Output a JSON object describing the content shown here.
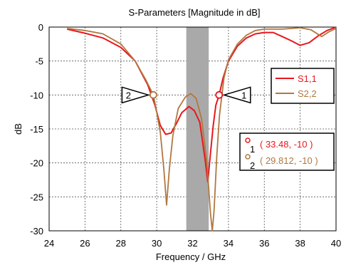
{
  "chart_data": {
    "type": "line",
    "title": "S-Parameters [Magnitude in dB]",
    "xlabel": "Frequency / GHz",
    "ylabel": "dB",
    "xlim": [
      24,
      40
    ],
    "ylim": [
      -30,
      0
    ],
    "xticks": [
      "24",
      "26",
      "28",
      "30",
      "32",
      "34",
      "36",
      "38",
      "40"
    ],
    "yticks": [
      "0",
      "-5",
      "-10",
      "-15",
      "-20",
      "-25",
      "-30"
    ],
    "grid": true,
    "legend_position": "right",
    "shaded_band": {
      "x_from": 31.65,
      "x_to": 32.9,
      "color": "#a9a9a9"
    },
    "series": [
      {
        "name": "S1,1",
        "color": "#e8171d",
        "points": [
          [
            25,
            -0.3
          ],
          [
            26,
            -0.9
          ],
          [
            27,
            -1.6
          ],
          [
            28,
            -3.0
          ],
          [
            28.8,
            -5.0
          ],
          [
            29.5,
            -8.5
          ],
          [
            29.9,
            -11.5
          ],
          [
            30.2,
            -14.5
          ],
          [
            30.5,
            -15.8
          ],
          [
            30.8,
            -15.6
          ],
          [
            31.1,
            -14.2
          ],
          [
            31.4,
            -12.6
          ],
          [
            31.8,
            -11.7
          ],
          [
            32.1,
            -12.3
          ],
          [
            32.4,
            -14.0
          ],
          [
            32.7,
            -19.5
          ],
          [
            32.85,
            -22.8
          ],
          [
            33.0,
            -18.5
          ],
          [
            33.15,
            -14.5
          ],
          [
            33.3,
            -11.5
          ],
          [
            33.48,
            -10.0
          ],
          [
            33.7,
            -7.5
          ],
          [
            34.0,
            -5.0
          ],
          [
            34.5,
            -2.8
          ],
          [
            35.0,
            -1.6
          ],
          [
            35.5,
            -1.0
          ],
          [
            36.0,
            -0.8
          ],
          [
            36.5,
            -0.8
          ],
          [
            37.0,
            -1.4
          ],
          [
            37.5,
            -2.0
          ],
          [
            38.0,
            -2.7
          ],
          [
            38.5,
            -2.3
          ],
          [
            39.0,
            -1.3
          ],
          [
            39.5,
            -0.5
          ],
          [
            40.0,
            0.0
          ]
        ]
      },
      {
        "name": "S2,2",
        "color": "#b07840",
        "points": [
          [
            25,
            -0.2
          ],
          [
            26,
            -0.5
          ],
          [
            27,
            -1.0
          ],
          [
            28,
            -2.5
          ],
          [
            28.8,
            -5.0
          ],
          [
            29.4,
            -7.8
          ],
          [
            29.812,
            -10.0
          ],
          [
            30.0,
            -12.5
          ],
          [
            30.2,
            -15.5
          ],
          [
            30.4,
            -21.0
          ],
          [
            30.55,
            -26.2
          ],
          [
            30.7,
            -21.0
          ],
          [
            30.9,
            -16.0
          ],
          [
            31.2,
            -12.0
          ],
          [
            31.6,
            -10.3
          ],
          [
            31.9,
            -9.8
          ],
          [
            32.2,
            -10.5
          ],
          [
            32.5,
            -13.5
          ],
          [
            32.8,
            -20.0
          ],
          [
            33.0,
            -27.5
          ],
          [
            33.1,
            -30.0
          ],
          [
            33.2,
            -27.0
          ],
          [
            33.35,
            -19.0
          ],
          [
            33.5,
            -13.0
          ],
          [
            33.75,
            -7.5
          ],
          [
            34.0,
            -4.8
          ],
          [
            34.5,
            -2.5
          ],
          [
            35.0,
            -1.2
          ],
          [
            35.5,
            -0.5
          ],
          [
            36.0,
            -0.3
          ],
          [
            37.0,
            -0.3
          ],
          [
            38.0,
            -0.1
          ],
          [
            38.6,
            -0.4
          ],
          [
            39.2,
            -1.4
          ],
          [
            39.6,
            -0.7
          ],
          [
            40.0,
            -0.2
          ]
        ]
      }
    ],
    "markers": [
      {
        "id": "1",
        "x": 33.48,
        "y": -10,
        "label": "( 33.48, -10 )",
        "color": "#e8171d"
      },
      {
        "id": "2",
        "x": 29.812,
        "y": -10,
        "label": "( 29.812, -10 )",
        "color": "#b07840"
      }
    ]
  }
}
